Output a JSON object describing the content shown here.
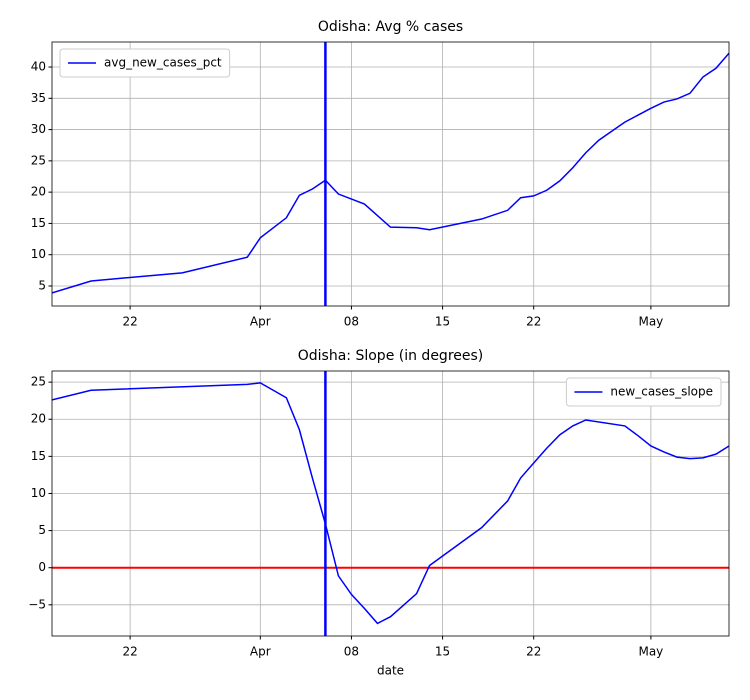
{
  "chart_data": [
    {
      "type": "line",
      "title": "Odisha: Avg % cases",
      "x": [
        "03-16",
        "03-19",
        "03-26",
        "03-31",
        "04-01",
        "04-03",
        "04-04",
        "04-05",
        "04-06",
        "04-07",
        "04-09",
        "04-11",
        "04-13",
        "04-14",
        "04-18",
        "04-20",
        "04-21",
        "04-22",
        "04-23",
        "04-24",
        "04-25",
        "04-26",
        "04-27",
        "04-29",
        "04-30",
        "05-01",
        "05-02",
        "05-03",
        "05-04",
        "05-05",
        "05-06",
        "05-07"
      ],
      "series": [
        {
          "name": "avg_new_cases_pct",
          "color": "#0000ff",
          "values": [
            3.9,
            5.8,
            7.1,
            9.6,
            12.7,
            15.9,
            19.5,
            20.5,
            21.9,
            19.7,
            18.1,
            14.4,
            14.3,
            14.0,
            15.7,
            17.1,
            19.1,
            19.4,
            20.3,
            21.8,
            23.9,
            26.3,
            28.3,
            31.2,
            32.3,
            33.4,
            34.4,
            34.9,
            35.8,
            38.4,
            39.8,
            42.2
          ]
        }
      ],
      "xlim": [
        "03-16",
        "05-07"
      ],
      "xticks": [
        {
          "value": "03-22",
          "label": "22"
        },
        {
          "value": "04-01",
          "label": "Apr"
        },
        {
          "value": "04-08",
          "label": "08"
        },
        {
          "value": "04-15",
          "label": "15"
        },
        {
          "value": "04-22",
          "label": "22"
        },
        {
          "value": "05-01",
          "label": "May"
        }
      ],
      "ylim": [
        1.8,
        44.0
      ],
      "yticks": [
        5,
        10,
        15,
        20,
        25,
        30,
        35,
        40
      ],
      "grid": true,
      "legend": "upper left",
      "vline": {
        "x": "04-06",
        "color": "#0000ff"
      }
    },
    {
      "type": "line",
      "title": "Odisha: Slope (in degrees)",
      "x_label": "date",
      "x": [
        "03-16",
        "03-19",
        "03-31",
        "04-01",
        "04-03",
        "04-04",
        "04-05",
        "04-06",
        "04-07",
        "04-08",
        "04-09",
        "04-10",
        "04-11",
        "04-13",
        "04-14",
        "04-18",
        "04-20",
        "04-21",
        "04-22",
        "04-23",
        "04-24",
        "04-25",
        "04-26",
        "04-29",
        "04-30",
        "05-01",
        "05-02",
        "05-03",
        "05-04",
        "05-05",
        "05-06",
        "05-07"
      ],
      "series": [
        {
          "name": "new_cases_slope",
          "color": "#0000ff",
          "values": [
            22.6,
            23.9,
            24.7,
            24.9,
            22.9,
            18.6,
            12.1,
            5.9,
            -1.1,
            -3.6,
            -5.5,
            -7.5,
            -6.6,
            -3.5,
            0.3,
            5.4,
            9.0,
            12.1,
            14.1,
            16.1,
            17.9,
            19.1,
            19.9,
            19.1,
            17.8,
            16.4,
            15.6,
            14.9,
            14.7,
            14.8,
            15.3,
            16.4
          ]
        }
      ],
      "xlim": [
        "03-16",
        "05-07"
      ],
      "xticks": [
        {
          "value": "03-22",
          "label": "22"
        },
        {
          "value": "04-01",
          "label": "Apr"
        },
        {
          "value": "04-08",
          "label": "08"
        },
        {
          "value": "04-15",
          "label": "15"
        },
        {
          "value": "04-22",
          "label": "22"
        },
        {
          "value": "05-01",
          "label": "May"
        }
      ],
      "ylim": [
        -9.2,
        26.5
      ],
      "yticks": [
        {
          "value": -5,
          "label": "−5"
        },
        0,
        5,
        10,
        15,
        20,
        25
      ],
      "grid": true,
      "legend": "upper right",
      "vline": {
        "x": "04-06",
        "color": "#0000ff"
      },
      "hline": {
        "y": 0,
        "color": "#ff0000"
      }
    }
  ]
}
